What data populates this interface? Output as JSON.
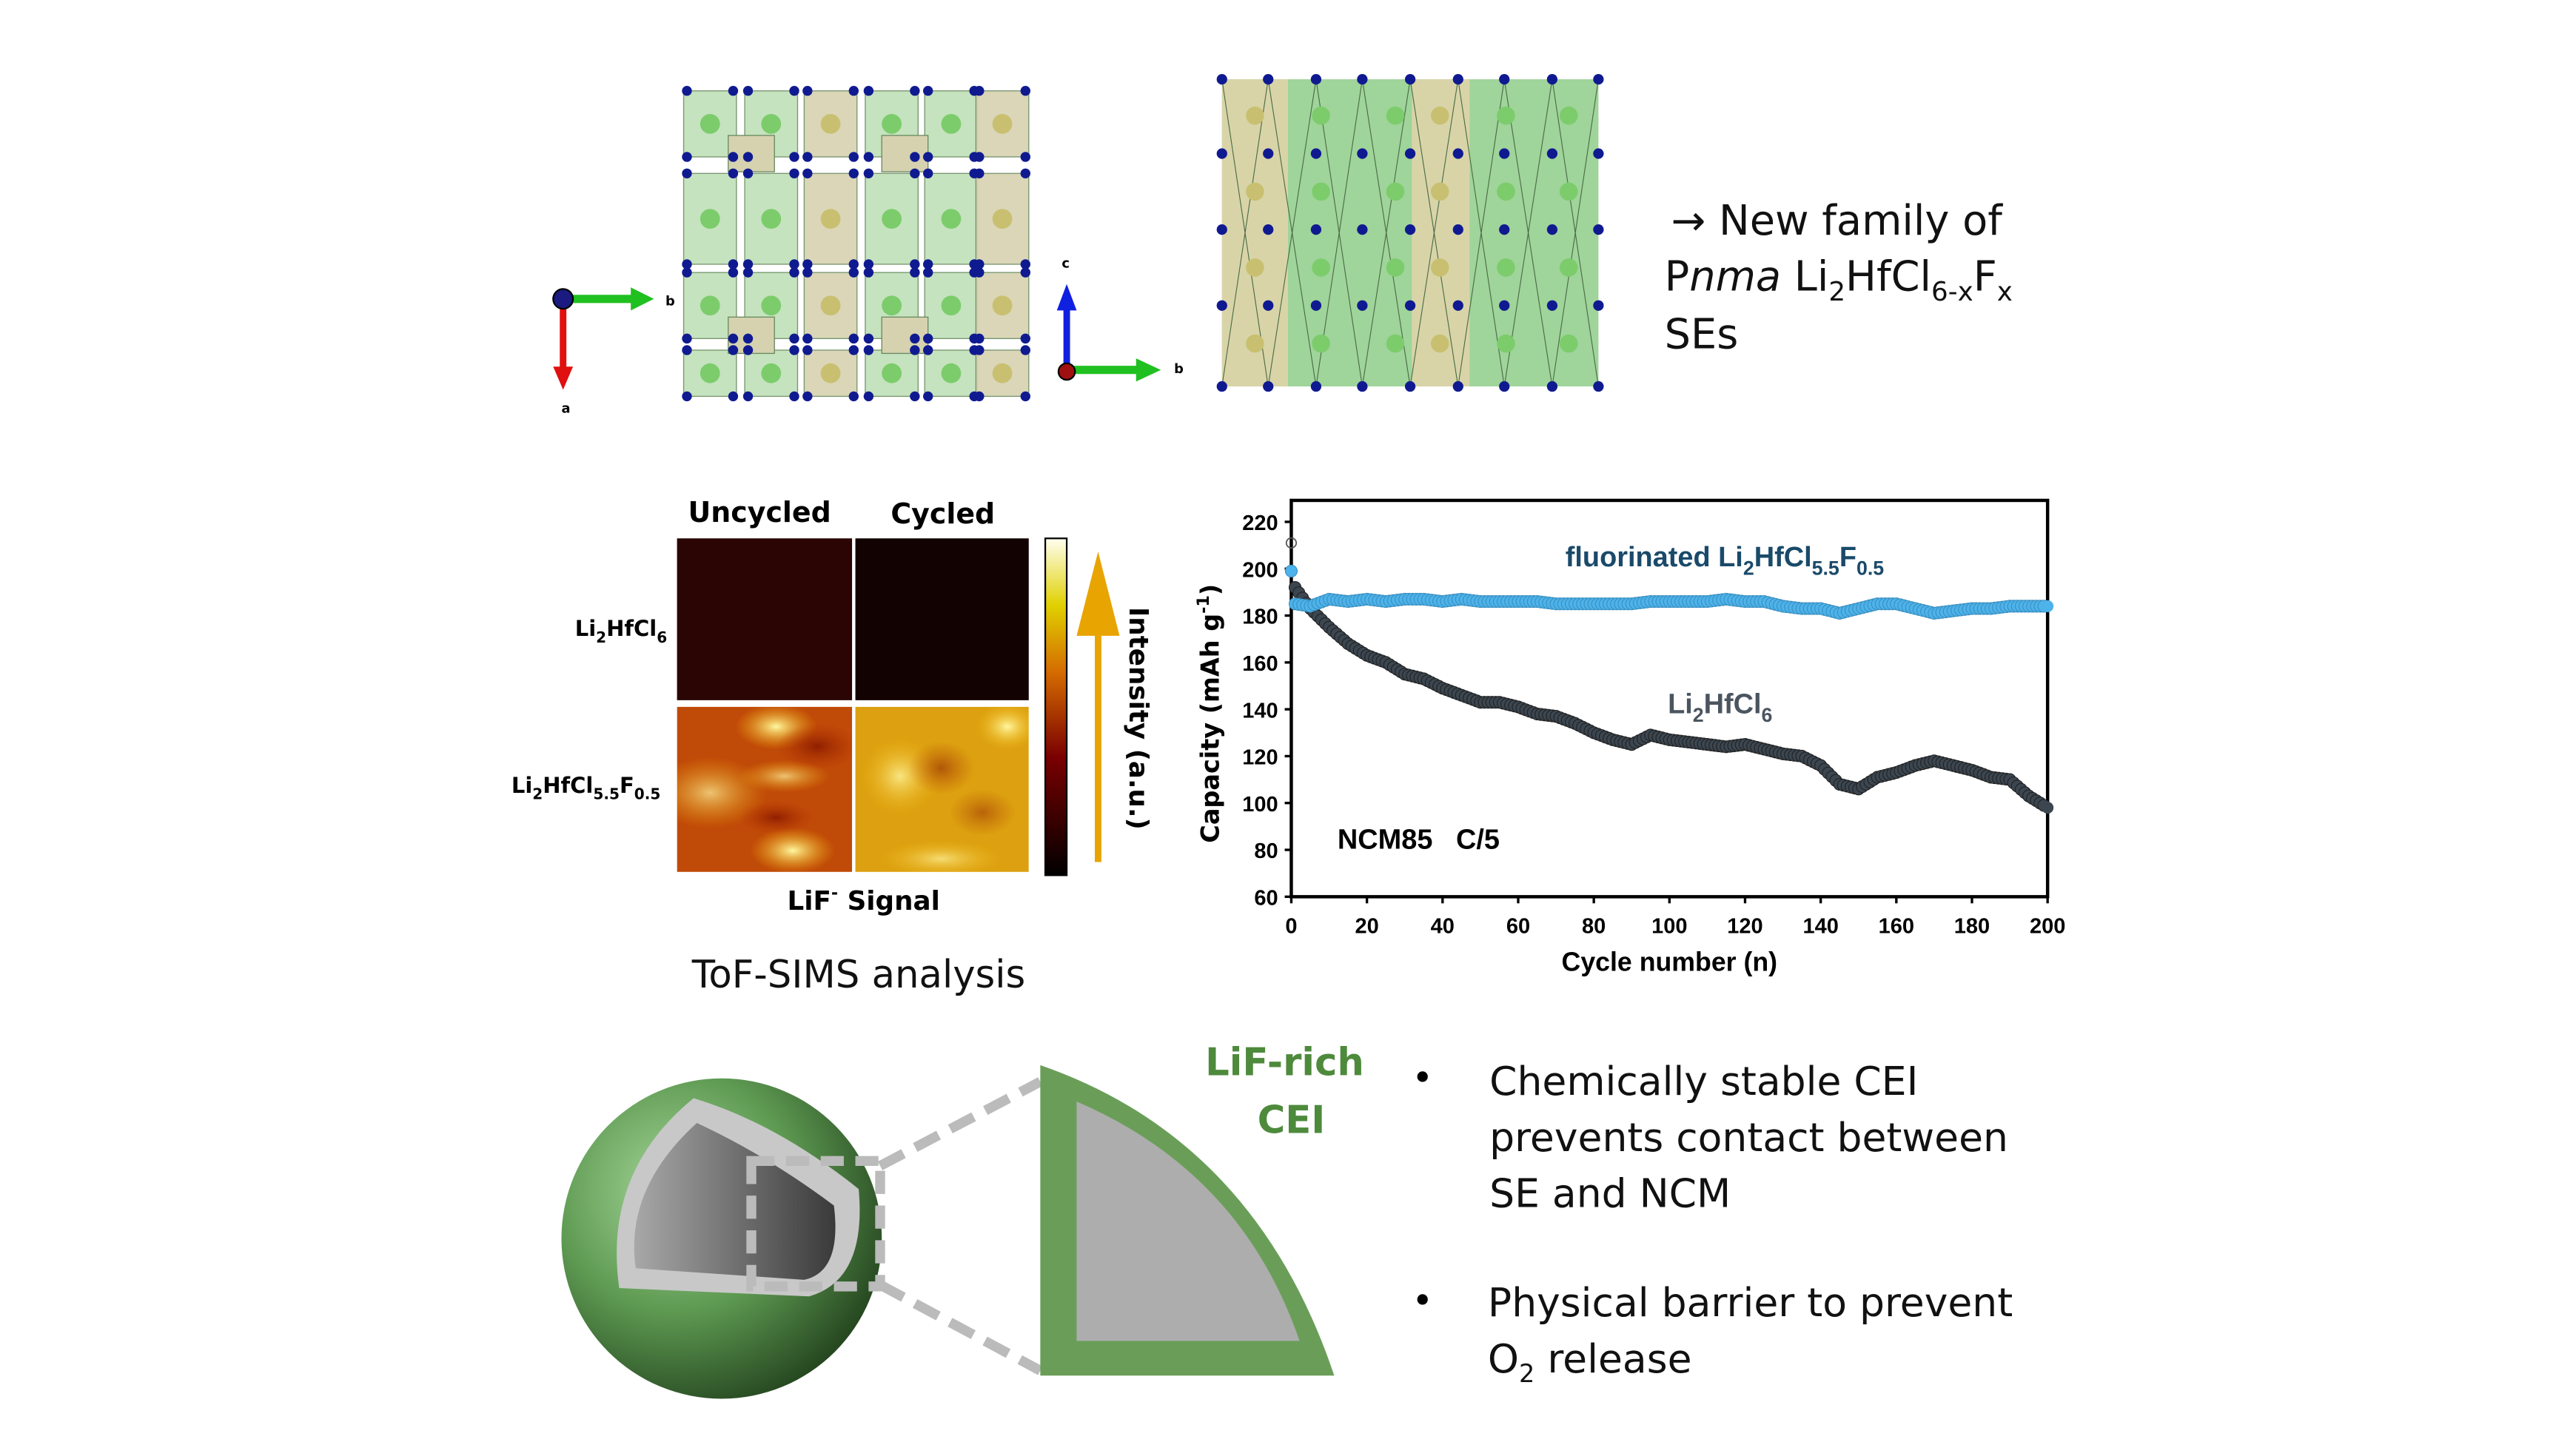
{
  "structure": {
    "left_axes": {
      "b": "b",
      "a": "a"
    },
    "right_axes": {
      "c": "c",
      "b": "b"
    }
  },
  "headline": {
    "arrow": "→",
    "line1": "New family of",
    "line2": {
      "p": "P",
      "nma": "nma",
      "li": " Li",
      "sub1": "2",
      "hfcl": "HfCl",
      "sub2": "6-x",
      "f": "F",
      "sub3": "x"
    },
    "line3": "SEs"
  },
  "tofsims": {
    "col_headers": [
      "Uncycled",
      "Cycled"
    ],
    "row_labels": [
      {
        "a": "Li",
        "s1": "2",
        "b": "HfCl",
        "s2": "6"
      },
      {
        "a": "Li",
        "s1": "2",
        "b": "HfCl",
        "s2": "5.5",
        "c": "F",
        "s3": "0.5"
      }
    ],
    "colorbar_label": "Intensity (a.u.)",
    "signal_label": {
      "a": "LiF",
      "sup": "-",
      "b": " Signal"
    },
    "caption": "ToF-SIMS analysis",
    "colors": {
      "arrow": "#e8a400"
    }
  },
  "chart_data": {
    "type": "scatter",
    "xlabel": "Cycle number (n)",
    "ylabel": {
      "a": "Capacity (mAh g",
      "sup": "-1",
      "b": ")"
    },
    "xlim": [
      0,
      200
    ],
    "ylim": [
      60,
      220
    ],
    "xticks": [
      0,
      20,
      40,
      60,
      80,
      100,
      120,
      140,
      160,
      180,
      200
    ],
    "yticks": [
      60,
      80,
      100,
      120,
      140,
      160,
      180,
      200,
      220
    ],
    "annotation": "NCM85   C/5",
    "series": [
      {
        "label": {
          "a": "Li",
          "s1": "2",
          "b": "HfCl",
          "s2": "6"
        },
        "color": "#3b4650",
        "x": [
          1,
          5,
          10,
          15,
          20,
          25,
          30,
          35,
          40,
          45,
          50,
          55,
          60,
          65,
          70,
          75,
          80,
          85,
          90,
          95,
          100,
          105,
          110,
          115,
          120,
          125,
          130,
          135,
          140,
          145,
          150,
          155,
          160,
          165,
          170,
          175,
          180,
          185,
          190,
          195,
          200
        ],
        "y": [
          192,
          183,
          175,
          168,
          163,
          160,
          155,
          153,
          149,
          146,
          143,
          143,
          141,
          138,
          137,
          134,
          130,
          127,
          125,
          129,
          127,
          126,
          125,
          124,
          125,
          123,
          121,
          120,
          116,
          108,
          106,
          111,
          113,
          116,
          118,
          116,
          114,
          111,
          110,
          103,
          98
        ]
      },
      {
        "label": {
          "a": "fluorinated Li",
          "s1": "2",
          "b": "HfCl",
          "s2": "5.5",
          "c": "F",
          "s3": "0.5"
        },
        "color": "#4db3ea",
        "label_color": "#1a4a6a",
        "x": [
          0,
          1,
          5,
          10,
          15,
          20,
          25,
          30,
          35,
          40,
          45,
          50,
          55,
          60,
          65,
          70,
          75,
          80,
          85,
          90,
          95,
          100,
          105,
          110,
          115,
          120,
          125,
          130,
          135,
          140,
          145,
          150,
          155,
          160,
          165,
          170,
          175,
          180,
          185,
          190,
          195,
          200
        ],
        "y": [
          199,
          185,
          184,
          187,
          186,
          187,
          186,
          187,
          187,
          186,
          187,
          186,
          186,
          186,
          186,
          185,
          185,
          185,
          185,
          185,
          186,
          186,
          186,
          186,
          187,
          186,
          186,
          184,
          183,
          183,
          181,
          183,
          185,
          185,
          183,
          181,
          182,
          183,
          183,
          184,
          184,
          184
        ]
      }
    ]
  },
  "cei": {
    "label_line1": "LiF-rich",
    "label_line2": "CEI",
    "color": "#6a9e58",
    "bullets": [
      {
        "lines": [
          "Chemically stable CEI",
          "prevents contact between",
          "SE and NCM"
        ]
      },
      {
        "line1": "Physical barrier to prevent",
        "o": "O",
        "sub": "2",
        "rest": " release"
      }
    ]
  }
}
